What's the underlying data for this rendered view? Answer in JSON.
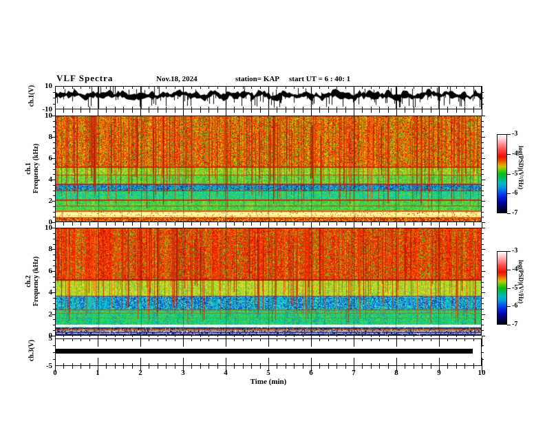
{
  "header": {
    "title": "VLF Spectra",
    "date": "Nov.18, 2024",
    "station": "station= KAP",
    "start_ut": "start UT =  6 : 40: 1"
  },
  "axes": {
    "x": {
      "label": "Time (min)",
      "min": 0,
      "max": 10,
      "minor_step": 0.2,
      "ticks": [
        "0",
        "1",
        "2",
        "3",
        "4",
        "5",
        "6",
        "7",
        "8",
        "9",
        "10"
      ]
    },
    "wave_y": {
      "label": "ch.1(V)",
      "min": -10,
      "max": 10,
      "ticks": [
        "10",
        "-10"
      ],
      "tick_values": [
        10,
        -10
      ],
      "minor_values": [
        5,
        0,
        -5
      ]
    },
    "sp1_y": {
      "label_line1": "ch.1",
      "label_line2": "Frequency (kHz)",
      "min": 0,
      "max": 10,
      "ticks": [
        "10",
        "8",
        "6",
        "4",
        "2",
        "0"
      ],
      "tick_values": [
        10,
        8,
        6,
        4,
        2,
        0
      ]
    },
    "sp2_y": {
      "label_line1": "ch.2",
      "label_line2": "Frequency (kHz)",
      "min": 0,
      "max": 10,
      "ticks": [
        "10",
        "8",
        "6",
        "4",
        "2",
        "0"
      ],
      "tick_values": [
        10,
        8,
        6,
        4,
        2,
        0
      ]
    },
    "ch3_y": {
      "label": "ch.3(V)",
      "min": -5,
      "max": 5,
      "ticks": [
        "5",
        "-5"
      ],
      "tick_values": [
        5,
        -5
      ],
      "minor_values": [
        2.5,
        0,
        -2.5
      ]
    }
  },
  "colorbar": {
    "label": "log(PSD)(V²/Hz)",
    "ticks": [
      "-3",
      "-4",
      "-5",
      "-6",
      "-7"
    ],
    "range": [
      -3,
      -7
    ],
    "gradient": [
      [
        "0%",
        "#ffffff"
      ],
      [
        "6%",
        "#ffccd0"
      ],
      [
        "13%",
        "#ff8888"
      ],
      [
        "20%",
        "#ff4444"
      ],
      [
        "28%",
        "#ee1100"
      ],
      [
        "33%",
        "#ee4400"
      ],
      [
        "37%",
        "#ee8800"
      ],
      [
        "41%",
        "#ccc400"
      ],
      [
        "45%",
        "#66cc00"
      ],
      [
        "50%",
        "#11bb11"
      ],
      [
        "56%",
        "#00bb66"
      ],
      [
        "62%",
        "#00bbbb"
      ],
      [
        "68%",
        "#0099dd"
      ],
      [
        "74%",
        "#0055ee"
      ],
      [
        "80%",
        "#0022dd"
      ],
      [
        "87%",
        "#0000aa"
      ],
      [
        "94%",
        "#000055"
      ],
      [
        "100%",
        "#000011"
      ]
    ]
  },
  "chart_data": [
    {
      "type": "line",
      "name": "ch1_voltage_waveform",
      "ylabel": "ch.1(V)",
      "xlabel": "Time (min)",
      "xlim": [
        0,
        10
      ],
      "ylim": [
        -10,
        10
      ],
      "description": "dense noisy voltage trace, mean near +2 V, band ~4 V wide, frequent negative spikes to -10 V and positive spikes to +10 V, vertical gridline at every minute",
      "gen": {
        "seed": 11,
        "center_min": -0.5,
        "center_span": 5.5,
        "amp_min": 0.8,
        "amp_span": 2.8,
        "spikes": 120,
        "down_ratio": 0.75
      }
    },
    {
      "type": "heatmap",
      "name": "ch1_spectrogram",
      "ylabel": "ch.1 Frequency (kHz)",
      "xlabel": "Time (min)",
      "xlim": [
        0,
        10
      ],
      "ylim": [
        0,
        10
      ],
      "zlabel": "log(PSD)(V²/Hz)",
      "zlim": [
        -7,
        -3
      ],
      "seed": 21,
      "bands": [
        {
          "f0": 0.0,
          "f1": 0.4,
          "mode": "speckle",
          "colors": [
            "#cc5500",
            "#aa3300",
            "#ff8800",
            "#883300",
            "#ffcc44",
            "#dd2200"
          ]
        },
        {
          "f0": 0.4,
          "f1": 1.05,
          "mode": "hband",
          "colors": [
            "#ffffcc",
            "#ffff99",
            "#ffee77",
            "#ffffff",
            "#ffdd66",
            "#eeee88"
          ],
          "speckle": "#dd2200",
          "density": 0.06
        },
        {
          "f0": 1.05,
          "f1": 2.1,
          "mode": "vstripe",
          "colors": [
            "#33cc44",
            "#55dd44",
            "#22bb55",
            "#66dd33",
            "#44cc66",
            "#99dd33"
          ]
        },
        {
          "f0": 2.1,
          "f1": 2.95,
          "mode": "vstripe",
          "colors": [
            "#33cc55",
            "#00ccaa",
            "#55dd44",
            "#00bbcc",
            "#44dd55",
            "#22cc77"
          ]
        },
        {
          "f0": 2.95,
          "f1": 3.6,
          "mode": "vstripe",
          "colors": [
            "#00bbcc",
            "#0077ee",
            "#00ccaa",
            "#2244cc",
            "#33ccaa",
            "#0099dd",
            "#003399",
            "#00bb88"
          ]
        },
        {
          "f0": 3.6,
          "f1": 4.45,
          "mode": "vstripe",
          "colors": [
            "#44cc33",
            "#88dd22",
            "#33cc66",
            "#aadd22",
            "#55cc44",
            "#22bb44"
          ]
        },
        {
          "f0": 4.45,
          "f1": 5.2,
          "mode": "vstripe",
          "colors": [
            "#99cc22",
            "#bbdd11",
            "#55cc33",
            "#dddd22",
            "#77cc33",
            "#44bb33"
          ]
        },
        {
          "f0": 5.2,
          "f1": 10.0,
          "mode": "vstripe",
          "colors": [
            "#ee2200",
            "#ff5500",
            "#dd3300",
            "#ffaa00",
            "#ff3300",
            "#ddcc00",
            "#44cc33",
            "#ff6600",
            "#cc1100",
            "#ff8800",
            "#ee4400",
            "#33bb44"
          ]
        }
      ],
      "hlines": [
        {
          "f": 5.2,
          "c": "#cc2200",
          "w": 2
        },
        {
          "f": 4.45,
          "c": "#cc3300",
          "w": 1
        },
        {
          "f": 3.6,
          "c": "#cc2200",
          "w": 2
        },
        {
          "f": 2.95,
          "c": "#bb3300",
          "w": 1
        },
        {
          "f": 2.1,
          "c": "#cc2200",
          "w": 2
        },
        {
          "f": 1.5,
          "c": "#bb4400",
          "w": 1
        },
        {
          "f": 1.05,
          "c": "#cc5500",
          "w": 2
        },
        {
          "f": 0.4,
          "c": "#993300",
          "w": 1
        }
      ],
      "streaks": {
        "count": 300,
        "fmin": 1.2,
        "fmax": 6.0,
        "colors": [
          "#cc1100",
          "#dd3300",
          "#991100",
          "#ff5500",
          "#bb2200"
        ]
      }
    },
    {
      "type": "heatmap",
      "name": "ch2_spectrogram",
      "ylabel": "ch.2 Frequency (kHz)",
      "xlabel": "Time (min)",
      "xlim": [
        0,
        10
      ],
      "ylim": [
        0,
        10
      ],
      "zlabel": "log(PSD)(V²/Hz)",
      "zlim": [
        -7,
        -3
      ],
      "seed": 77,
      "bands": [
        {
          "f0": 0.0,
          "f1": 0.75,
          "mode": "hband",
          "colors": [
            "#3333aa",
            "#cc3322",
            "#00cccc",
            "#ffffff",
            "#222277",
            "#cc8833",
            "#112266"
          ],
          "speckle": "#001144",
          "density": 0.12
        },
        {
          "f0": 0.75,
          "f1": 0.95,
          "mode": "vstripe",
          "colors": [
            "#ffffff",
            "#ccffee",
            "#aaeeee",
            "#ddffff"
          ]
        },
        {
          "f0": 0.95,
          "f1": 2.4,
          "mode": "vstripe",
          "colors": [
            "#33cc55",
            "#00ccaa",
            "#44dd44",
            "#00bb99",
            "#55cc44",
            "#0099cc"
          ]
        },
        {
          "f0": 2.4,
          "f1": 3.7,
          "mode": "vstripe",
          "colors": [
            "#00cccc",
            "#00aaee",
            "#33ccaa",
            "#0066dd",
            "#44ddcc",
            "#2233bb",
            "#00bbdd",
            "#33cc77"
          ]
        },
        {
          "f0": 3.7,
          "f1": 5.2,
          "mode": "vstripe",
          "colors": [
            "#aadd22",
            "#ccdd33",
            "#88cc33",
            "#eedd22",
            "#66cc44",
            "#ffcc11"
          ]
        },
        {
          "f0": 5.2,
          "f1": 10.0,
          "mode": "vstripe",
          "colors": [
            "#ee2200",
            "#ff4400",
            "#dd2200",
            "#ff7700",
            "#cc1100",
            "#ff3300",
            "#44cc33",
            "#ee5500",
            "#dd3300",
            "#ffaa00",
            "#ee3311"
          ]
        }
      ],
      "hlines": [
        {
          "f": 5.2,
          "c": "#aa1100",
          "w": 2
        },
        {
          "f": 3.7,
          "c": "#bb3300",
          "w": 1
        },
        {
          "f": 2.4,
          "c": "#bb4411",
          "w": 1
        },
        {
          "f": 2.05,
          "c": "#cc6600",
          "w": 1
        },
        {
          "f": 1.6,
          "c": "#44aa33",
          "w": 1
        },
        {
          "f": 0.95,
          "c": "#ffffff",
          "w": 2
        }
      ],
      "streaks": {
        "count": 260,
        "fmin": 1.0,
        "fmax": 6.0,
        "colors": [
          "#cc1100",
          "#dd3300",
          "#991100",
          "#ff5500",
          "#bb2200"
        ]
      }
    },
    {
      "type": "line",
      "name": "ch3_voltage",
      "ylabel": "ch.3(V)",
      "xlabel": "Time (min)",
      "xlim": [
        0,
        10
      ],
      "ylim": [
        -5,
        5
      ],
      "description": "constant thick black bar (saturated/flat channel)",
      "bar": {
        "value_v": 0.5,
        "half_width_v": 0.9,
        "t_start": 0,
        "t_end": 9.8
      }
    }
  ]
}
